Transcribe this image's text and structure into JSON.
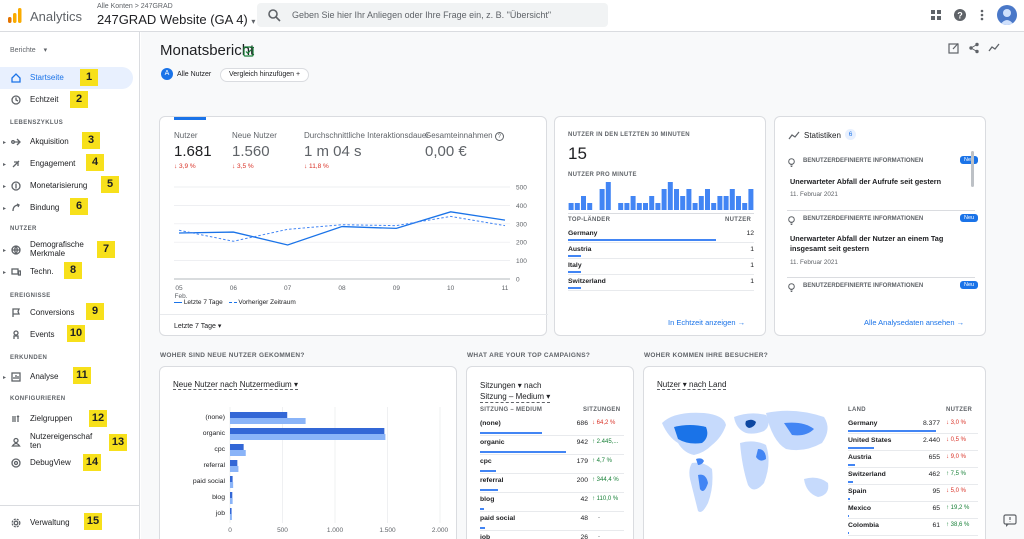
{
  "topbar": {
    "app_name": "Analytics",
    "breadcrumb": "Alle Konten > 247GRAD",
    "property": "247GRAD Website (GA 4)",
    "search_placeholder": "Geben Sie hier Ihr Anliegen oder Ihre Frage ein, z. B. \"Übersicht\"",
    "icons": [
      "apps-grid-icon",
      "help-icon",
      "more-vert-icon",
      "account-avatar-icon"
    ]
  },
  "sidebar": {
    "reports_selector": "Berichte",
    "items": [
      {
        "label": "Startseite",
        "badge": "1",
        "icon": "home-icon",
        "active": true
      },
      {
        "label": "Echtzeit",
        "badge": "2",
        "icon": "clock-icon"
      },
      {
        "section": "LEBENSZYKLUS"
      },
      {
        "label": "Akquisition",
        "badge": "3",
        "icon": "acquisition-icon"
      },
      {
        "label": "Engagement",
        "badge": "4",
        "icon": "engagement-icon"
      },
      {
        "label": "Monetarisierung",
        "badge": "5",
        "icon": "dollar-icon"
      },
      {
        "label": "Bindung",
        "badge": "6",
        "icon": "retention-icon"
      },
      {
        "section": "NUTZER"
      },
      {
        "label": "Demografische Merkmale",
        "badge": "7",
        "icon": "globe-icon"
      },
      {
        "label": "Techn.",
        "badge": "8",
        "icon": "devices-icon"
      },
      {
        "section": "EREIGNISSE"
      },
      {
        "label": "Conversions",
        "badge": "9",
        "icon": "flag-icon"
      },
      {
        "label": "Events",
        "badge": "10",
        "icon": "touch-icon"
      },
      {
        "section": "ERKUNDEN"
      },
      {
        "label": "Analyse",
        "badge": "11",
        "icon": "analysis-icon"
      },
      {
        "section": "KONFIGURIEREN"
      },
      {
        "label": "Zielgruppen",
        "badge": "12",
        "icon": "audience-icon"
      },
      {
        "label": "Nutzereigenschaf ten",
        "badge": "13",
        "icon": "user-property-icon"
      },
      {
        "label": "DebugView",
        "badge": "14",
        "icon": "debug-icon"
      }
    ],
    "admin": {
      "label": "Verwaltung",
      "badge": "15",
      "icon": "gear-icon"
    }
  },
  "header": {
    "title": "Monatsbericht",
    "all_users": "Alle Nutzer",
    "all_users_letter": "A",
    "compare": "Vergleich hinzufügen +"
  },
  "overview": {
    "metrics": [
      {
        "label": "Nutzer",
        "value": "1.681",
        "delta": "↓ 3,9 %"
      },
      {
        "label": "Neue Nutzer",
        "value": "1.560",
        "delta": "↓ 3,5 %"
      },
      {
        "label": "Durchschnittliche Interaktionsdauer",
        "value": "1 m 04 s",
        "delta": "↓ 11,8 %"
      },
      {
        "label": "Gesamteinnahmen",
        "value": "0,00 €",
        "delta": ""
      }
    ],
    "legend_current": "Letzte 7 Tage",
    "legend_previous": "Vorheriger Zeitraum",
    "date_range": "Letzte 7 Tage",
    "chart_data": {
      "type": "line",
      "x": [
        "05 Feb.",
        "06",
        "07",
        "08",
        "09",
        "10",
        "11"
      ],
      "y_ticks": [
        "0",
        "100",
        "200",
        "300",
        "400",
        "500"
      ],
      "ylim": [
        0,
        500
      ],
      "series": [
        {
          "name": "Letzte 7 Tage",
          "values": [
            250,
            255,
            185,
            285,
            275,
            365,
            320
          ]
        },
        {
          "name": "Vorheriger Zeitraum",
          "values": [
            265,
            205,
            270,
            295,
            290,
            340,
            290
          ]
        }
      ]
    }
  },
  "realtime": {
    "title": "NUTZER IN DEN LETZTEN 30 MINUTEN",
    "count": "15",
    "per_minute_label": "NUTZER PRO MINUTE",
    "chart_data": {
      "type": "bar",
      "values": [
        1,
        1,
        2,
        1,
        0,
        3,
        4,
        0,
        1,
        1,
        2,
        1,
        1,
        2,
        1,
        3,
        4,
        3,
        2,
        3,
        1,
        2,
        3,
        1,
        2,
        2,
        3,
        2,
        1,
        3
      ]
    },
    "table_headers": [
      "TOP-LÄNDER",
      "NUTZER"
    ],
    "rows": [
      {
        "country": "Germany",
        "users": "12"
      },
      {
        "country": "Austria",
        "users": "1"
      },
      {
        "country": "Italy",
        "users": "1"
      },
      {
        "country": "Switzerland",
        "users": "1"
      }
    ],
    "link": "In Echtzeit anzeigen →"
  },
  "insights": {
    "title": "Statistiken",
    "count": "6",
    "items": [
      {
        "kind": "BENUTZERDEFINIERTE INFORMATIONEN",
        "tag": "Neu",
        "title": "Unerwarteter Abfall der Aufrufe seit gestern",
        "date": "11. Februar 2021"
      },
      {
        "kind": "BENUTZERDEFINIERTE INFORMATIONEN",
        "tag": "Neu",
        "title": "Unerwarteter Abfall der Nutzer an einem Tag insgesamt seit gestern",
        "date": "11. Februar 2021"
      },
      {
        "kind": "BENUTZERDEFINIERTE INFORMATIONEN",
        "tag": "Neu",
        "title": "",
        "date": ""
      }
    ],
    "link": "Alle Analysedaten ansehen →"
  },
  "new_users": {
    "section_title": "WOHER SIND NEUE NUTZER GEKOMMEN?",
    "selector": "Neue Nutzer nach Nutzermedium ▾",
    "chart_data": {
      "type": "bar",
      "orientation": "horizontal",
      "categories": [
        "(none)",
        "organic",
        "cpc",
        "referral",
        "paid social",
        "blog",
        "job"
      ],
      "series": [
        {
          "values": [
            545,
            1470,
            130,
            70,
            25,
            22,
            15
          ]
        },
        {
          "values": [
            720,
            1480,
            150,
            80,
            30,
            25,
            18
          ]
        }
      ],
      "x_ticks": [
        "0",
        "500",
        "1.000",
        "1.500",
        "2.000"
      ],
      "xlim": [
        0,
        2000
      ]
    }
  },
  "campaigns": {
    "section_title": "WHAT ARE YOUR TOP CAMPAIGNS?",
    "selector_line1": "Sitzungen ▾ nach",
    "selector_line2": "Sitzung – Medium ▾",
    "headers": [
      "SITZUNG – MEDIUM",
      "SITZUNGEN"
    ],
    "rows": [
      {
        "name": "(none)",
        "value": "686",
        "delta": "↓ 64,2 %",
        "dir": "down",
        "share": 0.73
      },
      {
        "name": "organic",
        "value": "942",
        "delta": "↑ 2.445,...",
        "dir": "up",
        "share": 1.0
      },
      {
        "name": "cpc",
        "value": "179",
        "delta": "↑ 4,7 %",
        "dir": "up",
        "share": 0.19
      },
      {
        "name": "referral",
        "value": "200",
        "delta": "↑ 344,4 %",
        "dir": "up",
        "share": 0.21
      },
      {
        "name": "blog",
        "value": "42",
        "delta": "↑ 110,0 %",
        "dir": "up",
        "share": 0.05
      },
      {
        "name": "paid social",
        "value": "48",
        "delta": "-",
        "dir": "none",
        "share": 0.05
      },
      {
        "name": "job",
        "value": "26",
        "delta": "-",
        "dir": "none",
        "share": 0.03
      }
    ]
  },
  "visitors": {
    "section_title": "WOHER KOMMEN IHRE BESUCHER?",
    "selector": "Nutzer ▾ nach Land",
    "headers": [
      "LAND",
      "NUTZER"
    ],
    "rows": [
      {
        "name": "Germany",
        "value": "8.377",
        "delta": "↓ 3,0 %",
        "dir": "down",
        "share": 1.0
      },
      {
        "name": "United States",
        "value": "2.440",
        "delta": "↓ 0,5 %",
        "dir": "down",
        "share": 0.29
      },
      {
        "name": "Austria",
        "value": "655",
        "delta": "↓ 9,0 %",
        "dir": "down",
        "share": 0.08
      },
      {
        "name": "Switzerland",
        "value": "462",
        "delta": "↑ 7,5 %",
        "dir": "up",
        "share": 0.06
      },
      {
        "name": "Spain",
        "value": "95",
        "delta": "↓ 5,0 %",
        "dir": "down",
        "share": 0.02
      },
      {
        "name": "Mexico",
        "value": "65",
        "delta": "↑ 19,2 %",
        "dir": "up",
        "share": 0.01
      },
      {
        "name": "Colombia",
        "value": "61",
        "delta": "↑ 38,6 %",
        "dir": "up",
        "share": 0.01
      }
    ]
  },
  "colors": {
    "accent": "#1a73e8",
    "bar_dark": "#3367d6",
    "bar_light": "#8ab4f8",
    "badge": "#f7e01b",
    "negative": "#d93025",
    "positive": "#188038"
  }
}
